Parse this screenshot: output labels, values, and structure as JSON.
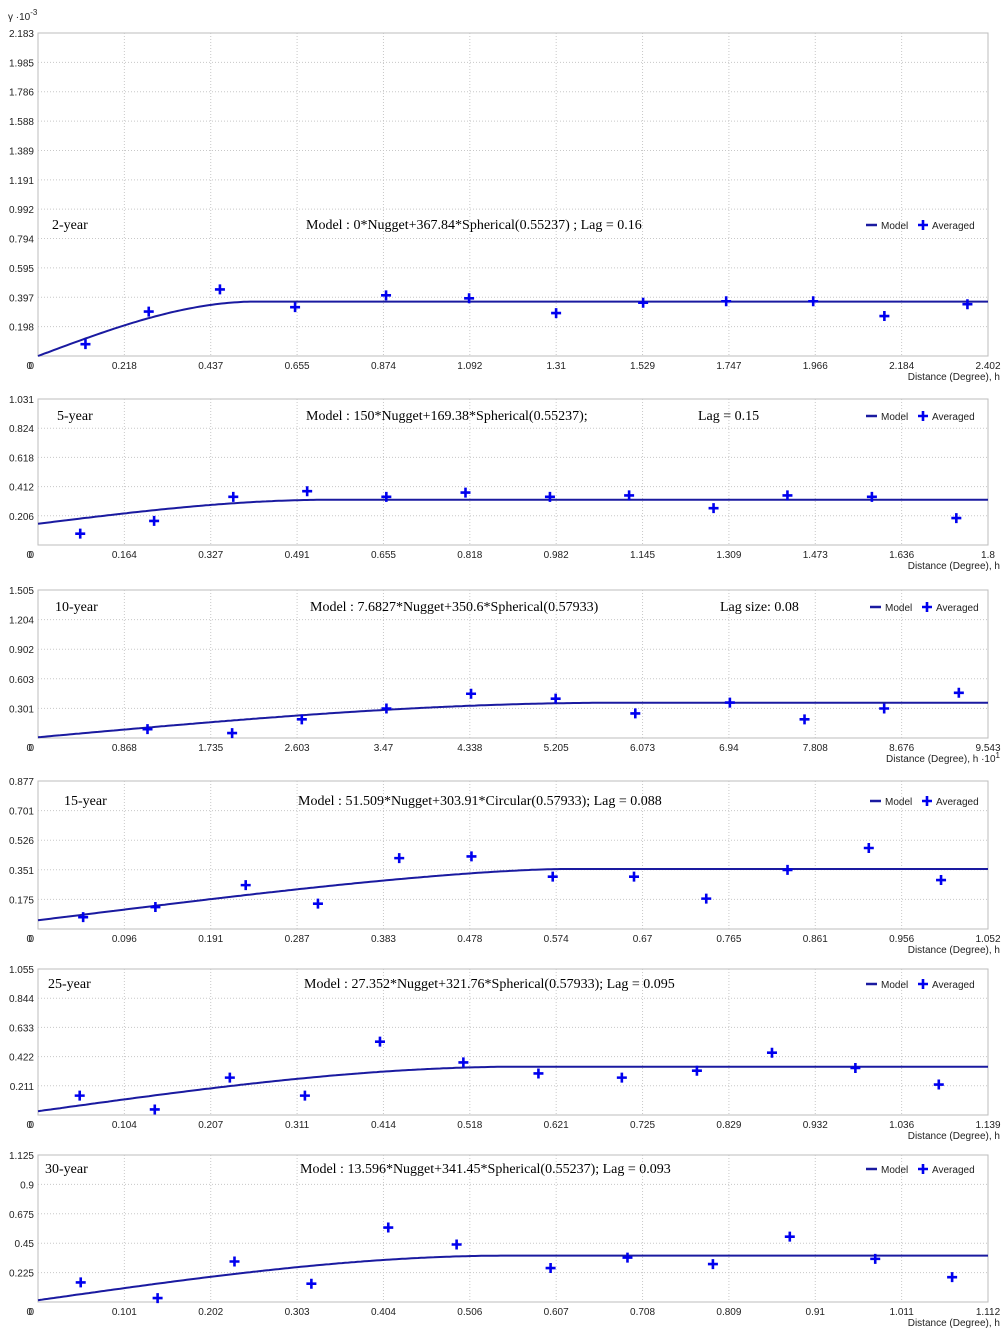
{
  "y_unit_label": "γ ·10",
  "y_unit_exp": "-3",
  "accent_color": "#0000ee",
  "model_color": "#1a1aa0",
  "legend": {
    "model": "Model",
    "averaged": "Averaged"
  },
  "chart_data": [
    {
      "type": "scatter",
      "panel_label": "2-year",
      "formula": "Model : 0*Nugget+367.84*Spherical(0.55237)  ; Lag = 0.16",
      "lag_text": "",
      "xlabel": "Distance (Degree), h",
      "x_exp": "",
      "x_ticks": [
        "0",
        "0.218",
        "0.437",
        "0.655",
        "0.874",
        "1.092",
        "1.31",
        "1.529",
        "1.747",
        "1.966",
        "2.184",
        "2.402"
      ],
      "y_ticks": [
        "0",
        "0.198",
        "0.397",
        "0.595",
        "0.794",
        "0.992",
        "1.191",
        "1.389",
        "1.588",
        "1.786",
        "1.985",
        "2.183"
      ],
      "xlim": [
        0,
        2.402
      ],
      "ylim": [
        0,
        2.183
      ],
      "model": {
        "nugget": 0,
        "sill": 0.36784,
        "range": 0.55237,
        "kind": "spherical"
      },
      "points": [
        [
          0.12,
          0.08
        ],
        [
          0.28,
          0.3
        ],
        [
          0.46,
          0.45
        ],
        [
          0.65,
          0.33
        ],
        [
          0.88,
          0.41
        ],
        [
          1.09,
          0.39
        ],
        [
          1.31,
          0.29
        ],
        [
          1.53,
          0.36
        ],
        [
          1.74,
          0.37
        ],
        [
          1.96,
          0.37
        ],
        [
          2.14,
          0.27
        ],
        [
          2.35,
          0.35
        ]
      ]
    },
    {
      "type": "scatter",
      "panel_label": "5-year",
      "formula": "Model : 150*Nugget+169.38*Spherical(0.55237);",
      "lag_text": "Lag = 0.15",
      "xlabel": "Distance (Degree), h",
      "x_exp": "",
      "x_ticks": [
        "0",
        "0.164",
        "0.327",
        "0.491",
        "0.655",
        "0.818",
        "0.982",
        "1.145",
        "1.309",
        "1.473",
        "1.636",
        "1.8"
      ],
      "y_ticks": [
        "0",
        "0.206",
        "0.412",
        "0.618",
        "0.824",
        "1.031"
      ],
      "xlim": [
        0,
        1.8
      ],
      "ylim": [
        0,
        1.031
      ],
      "model": {
        "nugget": 0.15,
        "sill": 0.16938,
        "range": 0.55237,
        "kind": "spherical"
      },
      "points": [
        [
          0.08,
          0.08
        ],
        [
          0.22,
          0.17
        ],
        [
          0.37,
          0.34
        ],
        [
          0.51,
          0.38
        ],
        [
          0.66,
          0.34
        ],
        [
          0.81,
          0.37
        ],
        [
          0.97,
          0.34
        ],
        [
          1.12,
          0.35
        ],
        [
          1.28,
          0.26
        ],
        [
          1.42,
          0.35
        ],
        [
          1.58,
          0.34
        ],
        [
          1.74,
          0.19
        ]
      ]
    },
    {
      "type": "scatter",
      "panel_label": "10-year",
      "formula": "Model : 7.6827*Nugget+350.6*Spherical(0.57933)",
      "lag_text": "Lag size: 0.08",
      "xlabel": "Distance (Degree), h ·10",
      "x_exp": "1",
      "x_ticks": [
        "0",
        "0.868",
        "1.735",
        "2.603",
        "3.47",
        "4.338",
        "5.205",
        "6.073",
        "6.94",
        "7.808",
        "8.676",
        "9.543"
      ],
      "y_ticks": [
        "0",
        "0.301",
        "0.603",
        "0.902",
        "1.204",
        "1.505"
      ],
      "xlim": [
        0,
        9.543
      ],
      "ylim": [
        0,
        1.505
      ],
      "model": {
        "nugget": 0.0076827,
        "sill": 0.3506,
        "range": 5.7933,
        "kind": "spherical"
      },
      "points": [
        [
          1.1,
          0.09
        ],
        [
          1.95,
          0.05
        ],
        [
          2.65,
          0.19
        ],
        [
          3.5,
          0.3
        ],
        [
          4.35,
          0.45
        ],
        [
          5.2,
          0.4
        ],
        [
          6.0,
          0.25
        ],
        [
          6.95,
          0.36
        ],
        [
          7.7,
          0.19
        ],
        [
          8.5,
          0.3
        ],
        [
          9.25,
          0.46
        ]
      ]
    },
    {
      "type": "scatter",
      "panel_label": "15-year",
      "formula": "Model : 51.509*Nugget+303.91*Circular(0.57933);  Lag = 0.088",
      "lag_text": "",
      "xlabel": "Distance (Degree), h",
      "x_exp": "",
      "x_ticks": [
        "0",
        "0.096",
        "0.191",
        "0.287",
        "0.383",
        "0.478",
        "0.574",
        "0.67",
        "0.765",
        "0.861",
        "0.956",
        "1.052"
      ],
      "y_ticks": [
        "0",
        "0.175",
        "0.351",
        "0.526",
        "0.701",
        "0.877"
      ],
      "xlim": [
        0,
        1.052
      ],
      "ylim": [
        0,
        0.877
      ],
      "model": {
        "nugget": 0.051509,
        "sill": 0.30391,
        "range": 0.57933,
        "kind": "circular"
      },
      "points": [
        [
          0.05,
          0.07
        ],
        [
          0.13,
          0.13
        ],
        [
          0.23,
          0.26
        ],
        [
          0.31,
          0.15
        ],
        [
          0.4,
          0.42
        ],
        [
          0.48,
          0.43
        ],
        [
          0.57,
          0.31
        ],
        [
          0.66,
          0.31
        ],
        [
          0.74,
          0.18
        ],
        [
          0.83,
          0.35
        ],
        [
          0.92,
          0.48
        ],
        [
          1.0,
          0.29
        ]
      ]
    },
    {
      "type": "scatter",
      "panel_label": "25-year",
      "formula": "Model : 27.352*Nugget+321.76*Spherical(0.57933); Lag = 0.095",
      "lag_text": "",
      "xlabel": "Distance (Degree), h",
      "x_exp": "",
      "x_ticks": [
        "0",
        "0.104",
        "0.207",
        "0.311",
        "0.414",
        "0.518",
        "0.621",
        "0.725",
        "0.829",
        "0.932",
        "1.036",
        "1.139"
      ],
      "y_ticks": [
        "0",
        "0.211",
        "0.422",
        "0.633",
        "0.844",
        "1.055"
      ],
      "xlim": [
        0,
        1.139
      ],
      "ylim": [
        0,
        1.055
      ],
      "model": {
        "nugget": 0.027352,
        "sill": 0.32176,
        "range": 0.57933,
        "kind": "spherical"
      },
      "points": [
        [
          0.05,
          0.14
        ],
        [
          0.14,
          0.04
        ],
        [
          0.23,
          0.27
        ],
        [
          0.32,
          0.14
        ],
        [
          0.41,
          0.53
        ],
        [
          0.51,
          0.38
        ],
        [
          0.6,
          0.3
        ],
        [
          0.7,
          0.27
        ],
        [
          0.79,
          0.32
        ],
        [
          0.88,
          0.45
        ],
        [
          0.98,
          0.34
        ],
        [
          1.08,
          0.22
        ]
      ]
    },
    {
      "type": "scatter",
      "panel_label": "30-year",
      "formula": "Model : 13.596*Nugget+341.45*Spherical(0.55237);  Lag = 0.093",
      "lag_text": "",
      "xlabel": "Distance (Degree), h",
      "x_exp": "",
      "x_ticks": [
        "0",
        "0.101",
        "0.202",
        "0.303",
        "0.404",
        "0.506",
        "0.607",
        "0.708",
        "0.809",
        "0.91",
        "1.011",
        "1.112"
      ],
      "y_ticks": [
        "0",
        "0.225",
        "0.45",
        "0.675",
        "0.9",
        "1.125"
      ],
      "xlim": [
        0,
        1.112
      ],
      "ylim": [
        0,
        1.125
      ],
      "model": {
        "nugget": 0.013596,
        "sill": 0.34145,
        "range": 0.55237,
        "kind": "spherical"
      },
      "points": [
        [
          0.05,
          0.15
        ],
        [
          0.14,
          0.03
        ],
        [
          0.23,
          0.31
        ],
        [
          0.32,
          0.14
        ],
        [
          0.41,
          0.57
        ],
        [
          0.49,
          0.44
        ],
        [
          0.6,
          0.26
        ],
        [
          0.69,
          0.34
        ],
        [
          0.79,
          0.29
        ],
        [
          0.88,
          0.5
        ],
        [
          0.98,
          0.33
        ],
        [
          1.07,
          0.19
        ]
      ]
    }
  ]
}
